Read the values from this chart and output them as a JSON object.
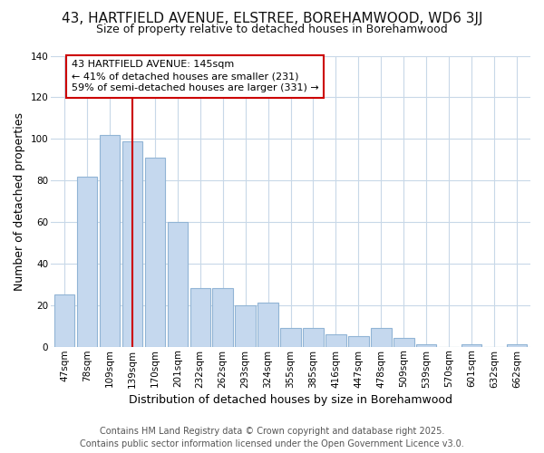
{
  "title": "43, HARTFIELD AVENUE, ELSTREE, BOREHAMWOOD, WD6 3JJ",
  "subtitle": "Size of property relative to detached houses in Borehamwood",
  "xlabel": "Distribution of detached houses by size in Borehamwood",
  "ylabel": "Number of detached properties",
  "categories": [
    "47sqm",
    "78sqm",
    "109sqm",
    "139sqm",
    "170sqm",
    "201sqm",
    "232sqm",
    "262sqm",
    "293sqm",
    "324sqm",
    "355sqm",
    "385sqm",
    "416sqm",
    "447sqm",
    "478sqm",
    "509sqm",
    "539sqm",
    "570sqm",
    "601sqm",
    "632sqm",
    "662sqm"
  ],
  "values": [
    25,
    82,
    102,
    99,
    91,
    60,
    28,
    28,
    20,
    21,
    9,
    9,
    6,
    5,
    9,
    4,
    1,
    0,
    1,
    0,
    1
  ],
  "bar_color": "#c5d8ee",
  "bar_edge_color": "#91b4d5",
  "vline_color": "#cc0000",
  "vline_x": 3,
  "annotation_line1": "43 HARTFIELD AVENUE: 145sqm",
  "annotation_line2": "← 41% of detached houses are smaller (231)",
  "annotation_line3": "59% of semi-detached houses are larger (331) →",
  "annotation_box_color": "#ffffff",
  "annotation_box_edge": "#cc0000",
  "ylim_max": 140,
  "yticks": [
    0,
    20,
    40,
    60,
    80,
    100,
    120,
    140
  ],
  "bg_color": "#ffffff",
  "plot_bg_color": "#ffffff",
  "grid_color": "#c8d8e8",
  "title_fontsize": 11,
  "subtitle_fontsize": 9,
  "axis_label_fontsize": 9,
  "tick_fontsize": 7.5,
  "footer_fontsize": 7,
  "annotation_fontsize": 8,
  "footer_line1": "Contains HM Land Registry data © Crown copyright and database right 2025.",
  "footer_line2": "Contains public sector information licensed under the Open Government Licence v3.0."
}
